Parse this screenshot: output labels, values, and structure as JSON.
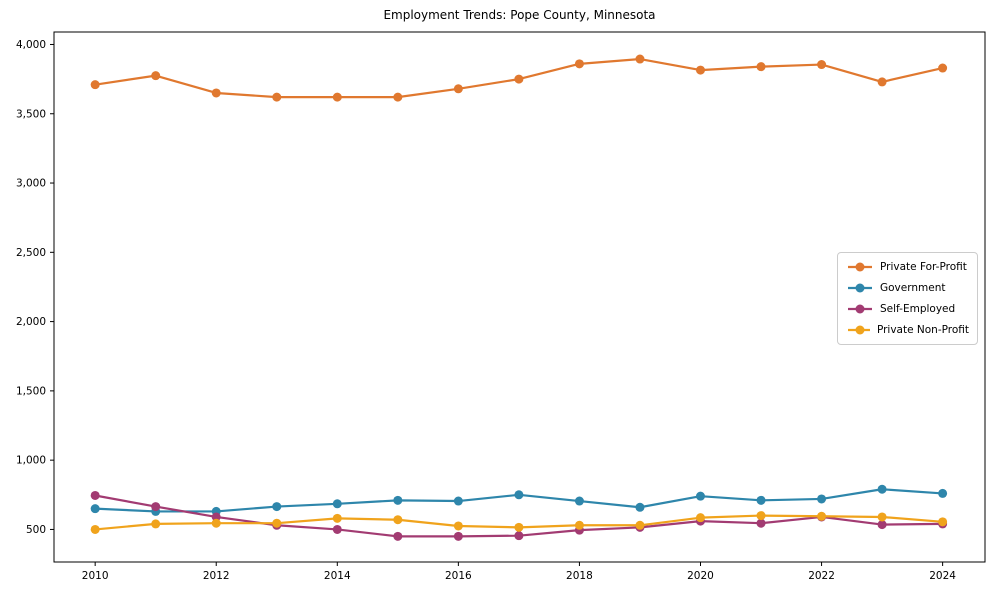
{
  "figure": {
    "title": "Employment Trends: Pope County, Minnesota"
  },
  "chart_data": {
    "type": "line",
    "title": "Employment Trends: Pope County, Minnesota",
    "xlabel": "",
    "ylabel": "",
    "x": [
      2010,
      2011,
      2012,
      2013,
      2014,
      2015,
      2016,
      2017,
      2018,
      2019,
      2020,
      2021,
      2022,
      2023,
      2024
    ],
    "series": [
      {
        "name": "Private For-Profit",
        "color": "#e0782f",
        "values": [
          3710,
          3775,
          3650,
          3620,
          3620,
          3620,
          3680,
          3750,
          3860,
          3895,
          3815,
          3840,
          3855,
          3730,
          3830
        ]
      },
      {
        "name": "Government",
        "color": "#2e86ab",
        "values": [
          650,
          630,
          630,
          665,
          685,
          710,
          705,
          750,
          705,
          660,
          740,
          710,
          720,
          790,
          760
        ]
      },
      {
        "name": "Self-Employed",
        "color": "#a23b72",
        "values": [
          745,
          665,
          590,
          530,
          500,
          450,
          450,
          455,
          495,
          515,
          560,
          545,
          590,
          535,
          540
        ]
      },
      {
        "name": "Private Non-Profit",
        "color": "#f0a31c",
        "values": [
          500,
          540,
          545,
          545,
          580,
          570,
          525,
          515,
          530,
          530,
          585,
          600,
          595,
          590,
          555
        ]
      }
    ],
    "xticks": [
      2010,
      2012,
      2014,
      2016,
      2018,
      2020,
      2022,
      2024
    ],
    "xtick_labels": [
      "2010",
      "2012",
      "2014",
      "2016",
      "2018",
      "2020",
      "2022",
      "2024"
    ],
    "yticks": [
      500,
      1000,
      1500,
      2000,
      2500,
      3000,
      3500,
      4000
    ],
    "ytick_labels": [
      "500",
      "1,000",
      "1,500",
      "2,000",
      "2,500",
      "3,000",
      "3,500",
      "4,000"
    ],
    "xlim": [
      2009.32,
      2024.7
    ],
    "ylim": [
      265,
      4090
    ],
    "grid": false,
    "legend_position": "center-right",
    "marker": "circle",
    "axis_color": "#000000",
    "tick_label_color": "#000000"
  }
}
